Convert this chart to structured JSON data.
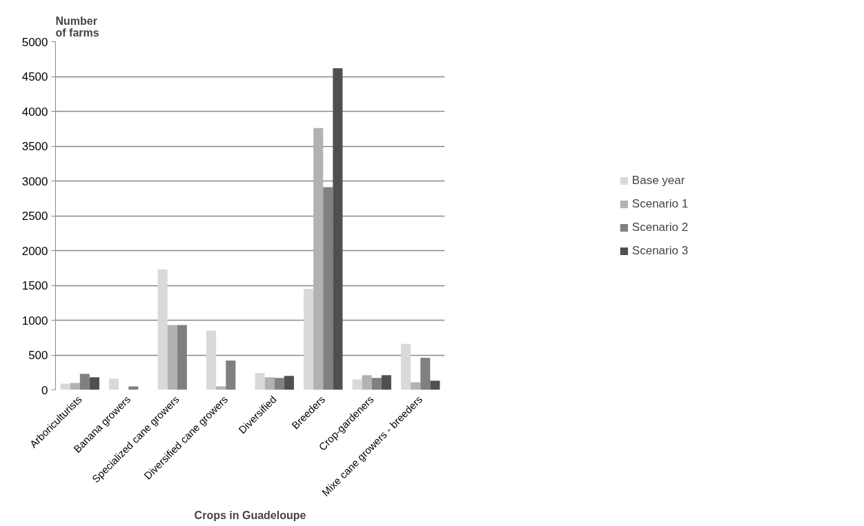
{
  "chart_data": {
    "type": "bar",
    "xlabel": "Crops in Guadeloupe",
    "ylabel": "Number of farms",
    "categories": [
      "Arboriculturists",
      "Banana growers",
      "Specialized cane growers",
      "Diversified cane growers",
      "Diversified",
      "Breeders",
      "Crop-gardeners",
      "Mixe cane growers - breeders"
    ],
    "series": [
      {
        "name": "Base year",
        "color": "#d9d9d9",
        "values": [
          90,
          160,
          1730,
          850,
          240,
          1450,
          150,
          660
        ]
      },
      {
        "name": "Scenario 1",
        "color": "#b2b2b2",
        "values": [
          100,
          0,
          930,
          50,
          180,
          3760,
          210,
          110
        ]
      },
      {
        "name": "Scenario 2",
        "color": "#808080",
        "values": [
          230,
          50,
          930,
          420,
          170,
          2910,
          170,
          460
        ]
      },
      {
        "name": "Scenario 3",
        "color": "#505050",
        "values": [
          180,
          0,
          0,
          0,
          200,
          4620,
          210,
          130
        ]
      }
    ],
    "ylim": [
      0,
      5000
    ],
    "yticks": [
      0,
      500,
      1000,
      1500,
      2000,
      2500,
      3000,
      3500,
      4000,
      4500,
      5000
    ],
    "grid": "y",
    "legend": "right"
  }
}
